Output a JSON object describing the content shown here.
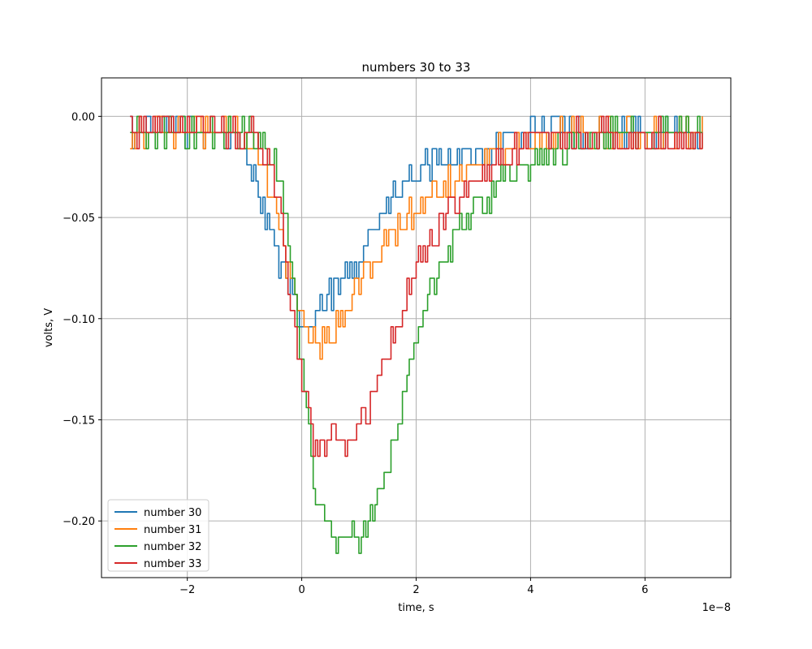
{
  "chart_data": {
    "type": "line",
    "title": "numbers 30 to 33",
    "xlabel": "time, s",
    "ylabel": "volts, V",
    "x_offset_label": "1e−8",
    "xlim": [
      -3.5,
      7.5
    ],
    "ylim": [
      -0.228,
      0.019
    ],
    "x_ticks": [
      -2,
      0,
      2,
      4,
      6
    ],
    "x_tick_labels": [
      "−2",
      "0",
      "2",
      "4",
      "6"
    ],
    "y_ticks": [
      0.0,
      -0.05,
      -0.1,
      -0.15,
      -0.2
    ],
    "y_tick_labels": [
      "0.00",
      "−0.05",
      "−0.10",
      "−0.15",
      "−0.20"
    ],
    "grid": true,
    "legend_position": "lower-left",
    "series": [
      {
        "name": "number 30",
        "color": "#1f77b4",
        "x": [
          -3.0,
          -2.5,
          -2.0,
          -1.5,
          -1.0,
          -0.8,
          -0.6,
          -0.4,
          -0.2,
          0.0,
          0.2,
          0.4,
          0.6,
          0.8,
          1.0,
          1.2,
          1.4,
          1.6,
          1.8,
          2.0,
          2.5,
          3.0,
          3.5,
          4.0,
          5.0,
          6.0,
          7.0
        ],
        "values": [
          -0.008,
          -0.004,
          -0.006,
          -0.008,
          -0.016,
          -0.03,
          -0.05,
          -0.072,
          -0.09,
          -0.104,
          -0.1,
          -0.092,
          -0.086,
          -0.078,
          -0.068,
          -0.056,
          -0.046,
          -0.04,
          -0.034,
          -0.028,
          -0.022,
          -0.018,
          -0.012,
          -0.006,
          -0.008,
          -0.008,
          -0.008
        ]
      },
      {
        "name": "number 31",
        "color": "#ff7f0e",
        "x": [
          -3.0,
          -2.5,
          -2.0,
          -1.5,
          -1.0,
          -0.8,
          -0.6,
          -0.4,
          -0.2,
          0.0,
          0.2,
          0.4,
          0.6,
          0.8,
          1.0,
          1.2,
          1.4,
          1.6,
          1.8,
          2.0,
          2.5,
          3.0,
          3.5,
          4.0,
          5.0,
          6.0,
          7.0
        ],
        "values": [
          -0.008,
          -0.004,
          -0.008,
          -0.008,
          -0.012,
          -0.016,
          -0.03,
          -0.055,
          -0.08,
          -0.104,
          -0.11,
          -0.112,
          -0.104,
          -0.092,
          -0.082,
          -0.072,
          -0.064,
          -0.058,
          -0.052,
          -0.046,
          -0.034,
          -0.024,
          -0.016,
          -0.01,
          -0.008,
          -0.008,
          -0.008
        ]
      },
      {
        "name": "number 32",
        "color": "#2ca02c",
        "x": [
          -3.0,
          -2.5,
          -2.0,
          -1.5,
          -1.0,
          -0.8,
          -0.6,
          -0.4,
          -0.2,
          0.0,
          0.2,
          0.4,
          0.6,
          0.8,
          1.0,
          1.2,
          1.4,
          1.6,
          1.8,
          2.0,
          2.5,
          3.0,
          3.5,
          4.0,
          5.0,
          6.0,
          7.0
        ],
        "values": [
          -0.01,
          -0.008,
          -0.008,
          -0.008,
          -0.008,
          -0.01,
          -0.016,
          -0.03,
          -0.07,
          -0.125,
          -0.18,
          -0.2,
          -0.214,
          -0.21,
          -0.206,
          -0.196,
          -0.182,
          -0.162,
          -0.135,
          -0.108,
          -0.068,
          -0.046,
          -0.032,
          -0.022,
          -0.01,
          -0.008,
          -0.008
        ]
      },
      {
        "name": "number 33",
        "color": "#d62728",
        "x": [
          -3.0,
          -2.5,
          -2.0,
          -1.5,
          -1.0,
          -0.8,
          -0.6,
          -0.4,
          -0.2,
          0.0,
          0.2,
          0.4,
          0.6,
          0.8,
          1.0,
          1.2,
          1.4,
          1.6,
          1.8,
          2.0,
          2.5,
          3.0,
          3.5,
          4.0,
          5.0,
          6.0,
          7.0
        ],
        "values": [
          -0.008,
          -0.004,
          -0.004,
          -0.008,
          -0.008,
          -0.01,
          -0.02,
          -0.04,
          -0.09,
          -0.135,
          -0.16,
          -0.162,
          -0.16,
          -0.158,
          -0.152,
          -0.14,
          -0.126,
          -0.108,
          -0.09,
          -0.074,
          -0.05,
          -0.032,
          -0.02,
          -0.012,
          -0.01,
          -0.01,
          -0.012
        ]
      }
    ]
  }
}
